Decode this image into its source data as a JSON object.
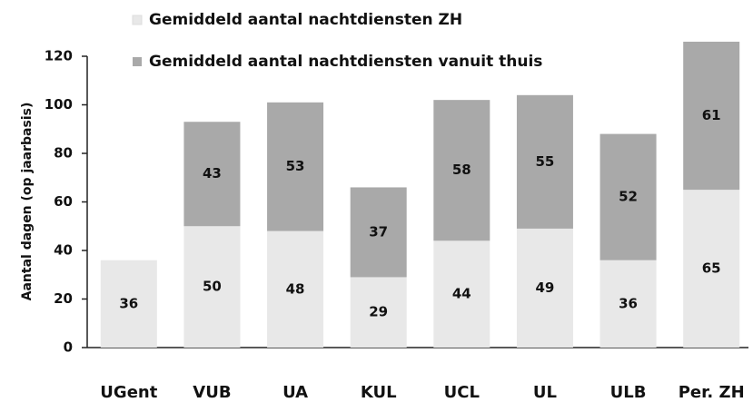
{
  "chart_data": {
    "type": "stacked_bar",
    "categories": [
      "UGent",
      "VUB",
      "UA",
      "KUL",
      "UCL",
      "UL",
      "ULB",
      "Per. ZH"
    ],
    "series": [
      {
        "name": "Gemiddeld aantal nachtdiensten ZH",
        "color": "#e8e8e8",
        "values": [
          36,
          50,
          48,
          29,
          44,
          49,
          36,
          65
        ]
      },
      {
        "name": "Gemiddeld aantal nachtdiensten vanuit thuis",
        "color": "#a9a9a9",
        "values": [
          null,
          43,
          53,
          37,
          58,
          55,
          52,
          61
        ]
      }
    ],
    "ylabel": "Aantal dagen (op jaarbasis)",
    "ylim": [
      0,
      120
    ],
    "yticks": [
      0,
      20,
      40,
      60,
      80,
      100,
      120
    ]
  }
}
